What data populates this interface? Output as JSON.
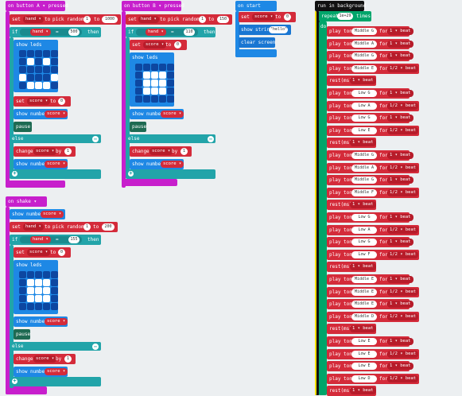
{
  "common": {
    "set": "set",
    "to": "to",
    "if": "if",
    "then": "then",
    "else": "else",
    "eq": "=",
    "pick_random": "pick random",
    "show_leds": "show leds",
    "show_number": "show number",
    "pause": "pause",
    "change": "change",
    "by": "by",
    "hand": "hand ▾",
    "score": "score ▾",
    "plus": "+",
    "minus": "−"
  },
  "button_a": {
    "header": "on button  A ▾  pressed",
    "rand_from": "1",
    "rand_to": "1000",
    "cmp": "500",
    "set_to": "0",
    "change_by": "1"
  },
  "button_b": {
    "header": "on button  B ▾  pressed",
    "rand_from": "1",
    "rand_to": "150",
    "cmp": "110",
    "set_to": "0",
    "change_by": "1"
  },
  "on_start": {
    "header": "on start",
    "set_to": "0",
    "show_string": "show string",
    "string_value": "\"hello\"",
    "clear_screen": "clear screen"
  },
  "on_shake": {
    "header": "on shake ▾",
    "rand_from": "1",
    "rand_to": "200",
    "cmp": "155",
    "set_to": "0",
    "change_by": "1"
  },
  "background": {
    "header": "run in background",
    "repeat": "repeat",
    "repeat_count": "1e+29",
    "times": "times",
    "do": "do",
    "play_tone": "play tone",
    "for": "for",
    "rest_label": "rest(ms)",
    "notes": [
      {
        "kind": "tone",
        "note": "Middle G",
        "beat": "1 ▾ beat"
      },
      {
        "kind": "tone",
        "note": "Middle A",
        "beat": "1 ▾ beat"
      },
      {
        "kind": "tone",
        "note": "Middle G",
        "beat": "1 ▾ beat"
      },
      {
        "kind": "tone",
        "note": "Middle E",
        "beat": "1/2 ▾ beat"
      },
      {
        "kind": "rest",
        "beat": "1 ▾ beat"
      },
      {
        "kind": "tone",
        "note": "Low G",
        "beat": "1 ▾ beat"
      },
      {
        "kind": "tone",
        "note": "Low A",
        "beat": "1/2 ▾ beat"
      },
      {
        "kind": "tone",
        "note": "Low G",
        "beat": "1 ▾ beat"
      },
      {
        "kind": "tone",
        "note": "Low E",
        "beat": "1/2 ▾ beat"
      },
      {
        "kind": "rest",
        "beat": "1 ▾ beat"
      },
      {
        "kind": "tone",
        "note": "Middle G",
        "beat": "1 ▾ beat"
      },
      {
        "kind": "tone",
        "note": "Middle A",
        "beat": "1/2 ▾ beat"
      },
      {
        "kind": "tone",
        "note": "Middle G",
        "beat": "1 ▾ beat"
      },
      {
        "kind": "tone",
        "note": "Middle F",
        "beat": "1/2 ▾ beat"
      },
      {
        "kind": "rest",
        "beat": "1 ▾ beat"
      },
      {
        "kind": "tone",
        "note": "Low G",
        "beat": "1 ▾ beat"
      },
      {
        "kind": "tone",
        "note": "Low A",
        "beat": "1/2 ▾ beat"
      },
      {
        "kind": "tone",
        "note": "Low G",
        "beat": "1 ▾ beat"
      },
      {
        "kind": "tone",
        "note": "Low F",
        "beat": "1/2 ▾ beat"
      },
      {
        "kind": "rest",
        "beat": "1 ▾ beat"
      },
      {
        "kind": "tone",
        "note": "Middle E",
        "beat": "1 ▾ beat"
      },
      {
        "kind": "tone",
        "note": "Middle E",
        "beat": "1/2 ▾ beat"
      },
      {
        "kind": "tone",
        "note": "Middle E",
        "beat": "1 ▾ beat"
      },
      {
        "kind": "tone",
        "note": "Middle D",
        "beat": "1/2 ▾ beat"
      },
      {
        "kind": "rest",
        "beat": "1 ▾ beat"
      },
      {
        "kind": "tone",
        "note": "Low E",
        "beat": "1 ▾ beat"
      },
      {
        "kind": "tone",
        "note": "Low E",
        "beat": "1/2 ▾ beat"
      },
      {
        "kind": "tone",
        "note": "Low E",
        "beat": "1 ▾ beat"
      },
      {
        "kind": "tone",
        "note": "Low D",
        "beat": "1/2 ▾ beat"
      },
      {
        "kind": "rest",
        "beat": "1 ▾ beat"
      }
    ]
  },
  "colors": {
    "event": "#c71fcc",
    "logic": "#22a4a9",
    "variable": "#d42b3a",
    "basic": "#1e88e5",
    "loop": "#00a56a",
    "music": "#d42b3a",
    "workspace": "#eceff1"
  }
}
